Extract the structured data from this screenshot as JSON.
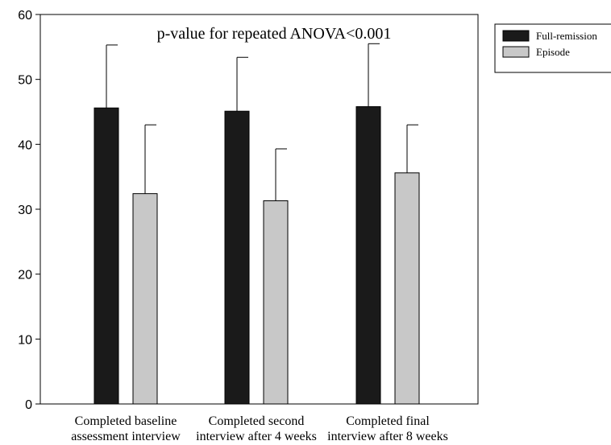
{
  "chart_data": {
    "type": "bar",
    "title": "",
    "xlabel": "",
    "ylabel": "",
    "ylim": [
      0,
      60
    ],
    "yticks": [
      0,
      10,
      20,
      30,
      40,
      50,
      60
    ],
    "grid": false,
    "legend_position": "top-right, outside plot",
    "annotation": "p-value for repeated ANOVA<0.001",
    "categories": [
      [
        "Completed baseline",
        "assessment interview"
      ],
      [
        "Completed second",
        "interview after 4 weeks"
      ],
      [
        "Completed final",
        "interview after 8 weeks"
      ]
    ],
    "series": [
      {
        "name": "Full-remission",
        "color": "#1a1a1a",
        "values": [
          45.6,
          45.1,
          45.8
        ],
        "error_upper": [
          55.3,
          53.4,
          55.5
        ]
      },
      {
        "name": "Episode",
        "color": "#c8c8c8",
        "values": [
          32.4,
          31.3,
          35.6
        ],
        "error_upper": [
          43.0,
          39.3,
          43.0
        ]
      }
    ]
  }
}
